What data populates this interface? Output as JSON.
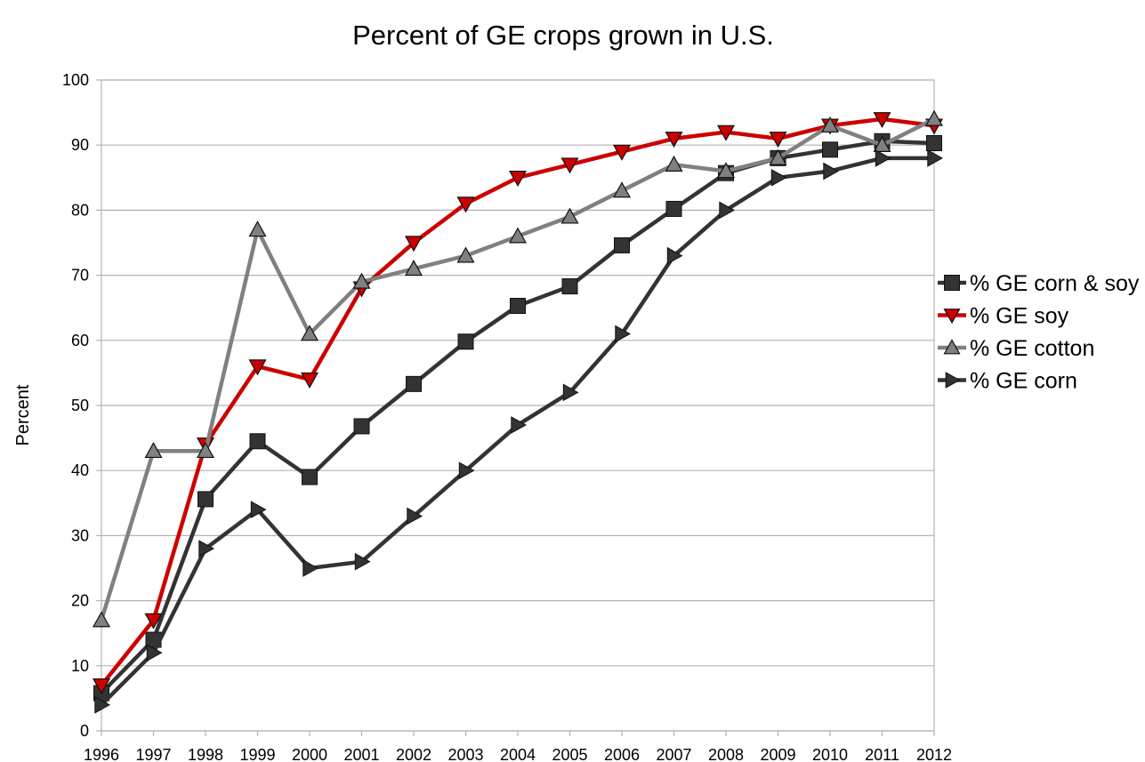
{
  "chart_data": {
    "type": "line",
    "title": "Percent of GE crops grown in U.S.",
    "xlabel": "",
    "ylabel": "Percent",
    "x": [
      1996,
      1997,
      1998,
      1999,
      2000,
      2001,
      2002,
      2003,
      2004,
      2005,
      2006,
      2007,
      2008,
      2009,
      2010,
      2011,
      2012
    ],
    "ylim": [
      0,
      100
    ],
    "yticks": [
      0,
      10,
      20,
      30,
      40,
      50,
      60,
      70,
      80,
      90,
      100
    ],
    "grid": "horizontal",
    "legend_position": "right",
    "series": [
      {
        "name": "% GE corn & soy",
        "marker": "square",
        "color": "#333333",
        "values": [
          5.8,
          14.0,
          35.6,
          44.5,
          39.0,
          46.8,
          53.3,
          59.8,
          65.3,
          68.3,
          74.6,
          80.2,
          85.7,
          88.0,
          89.3,
          90.6,
          90.3
        ]
      },
      {
        "name": "% GE soy",
        "marker": "triangle-down",
        "color": "#cc0000",
        "values": [
          7,
          17,
          44,
          56,
          54,
          68,
          75,
          81,
          85,
          87,
          89,
          91,
          92,
          91,
          93,
          94,
          93
        ]
      },
      {
        "name": "% GE cotton",
        "marker": "triangle-up",
        "color": "#808080",
        "values": [
          17,
          43,
          43,
          77,
          61,
          69,
          71,
          73,
          76,
          79,
          83,
          87,
          86,
          88,
          93,
          90,
          94
        ]
      },
      {
        "name": "% GE corn",
        "marker": "triangle-right",
        "color": "#333333",
        "values": [
          4,
          12,
          28,
          34,
          25,
          26,
          33,
          40,
          47,
          52,
          61,
          73,
          80,
          85,
          86,
          88,
          88
        ]
      }
    ]
  }
}
